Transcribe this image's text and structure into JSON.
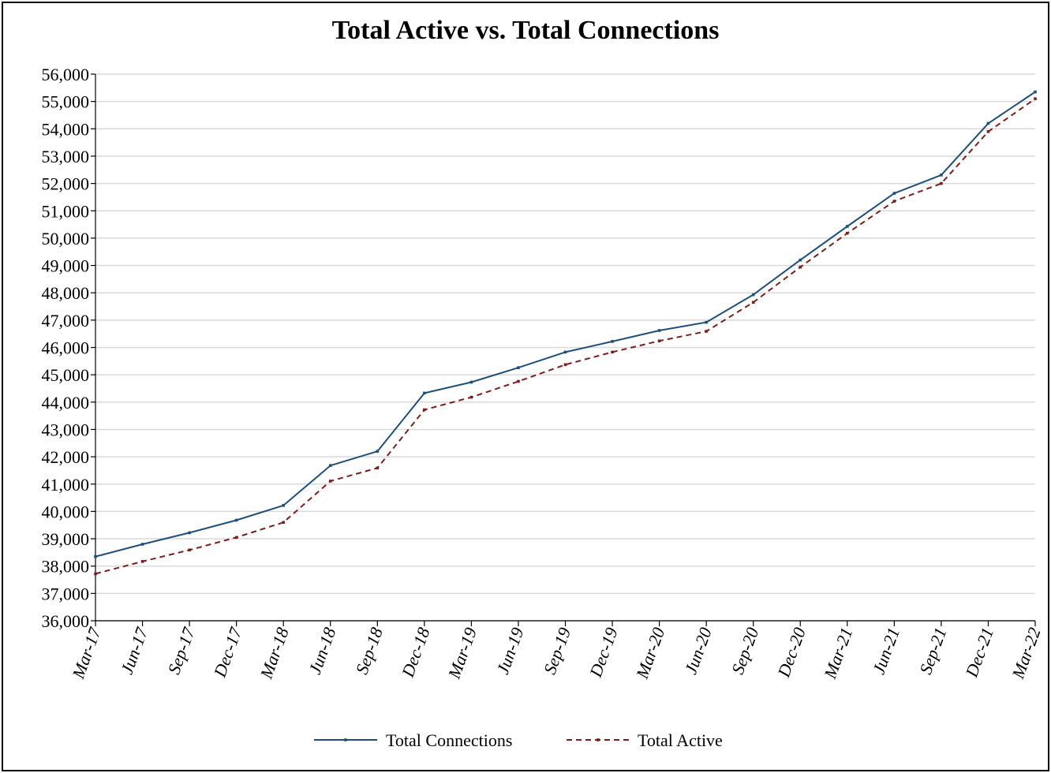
{
  "chart_data": {
    "type": "line",
    "title": "Total Active vs. Total Connections",
    "xlabel": "",
    "ylabel": "",
    "ylim": [
      36000,
      56000
    ],
    "ytick_step": 1000,
    "grid": true,
    "legend_position": "bottom",
    "categories": [
      "Mar-17",
      "Jun-17",
      "Sep-17",
      "Dec-17",
      "Mar-18",
      "Jun-18",
      "Sep-18",
      "Dec-18",
      "Mar-19",
      "Jun-19",
      "Sep-19",
      "Dec-19",
      "Mar-20",
      "Jun-20",
      "Sep-20",
      "Dec-20",
      "Mar-21",
      "Jun-21",
      "Sep-21",
      "Dec-21",
      "Mar-22"
    ],
    "series": [
      {
        "name": "Total Connections",
        "color": "#1f4e79",
        "dash": "solid",
        "values": [
          38350,
          38800,
          39220,
          39680,
          40220,
          41680,
          42200,
          44330,
          44730,
          45260,
          45830,
          46220,
          46620,
          46920,
          47930,
          49200,
          50430,
          51640,
          52310,
          54200,
          55350
        ]
      },
      {
        "name": "Total Active",
        "color": "#7b1e1e",
        "dash": "dashed",
        "values": [
          37720,
          38170,
          38590,
          39050,
          39600,
          41110,
          41590,
          43720,
          44180,
          44760,
          45370,
          45830,
          46240,
          46590,
          47650,
          48940,
          50180,
          51350,
          52000,
          53900,
          55100
        ]
      }
    ]
  }
}
